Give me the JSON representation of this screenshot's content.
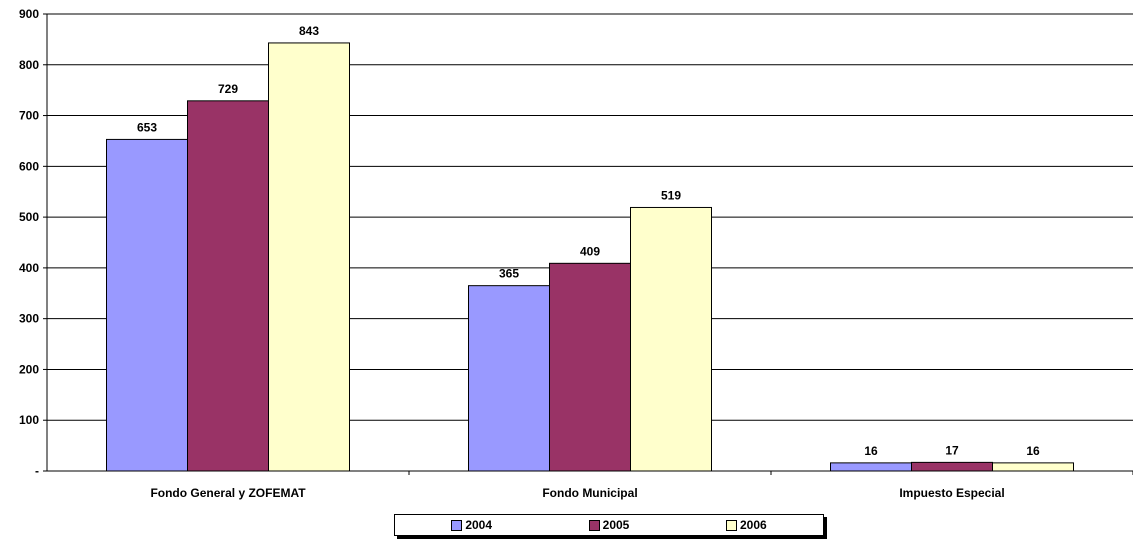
{
  "chart_data": {
    "type": "bar",
    "categories": [
      "Fondo General y ZOFEMAT",
      "Fondo Municipal",
      "Impuesto Especial"
    ],
    "series": [
      {
        "name": "2004",
        "values": [
          653,
          365,
          16
        ],
        "color": "#9999FF"
      },
      {
        "name": "2005",
        "values": [
          729,
          409,
          17
        ],
        "color": "#993366"
      },
      {
        "name": "2006",
        "values": [
          843,
          519,
          16
        ],
        "color": "#FFFFCC"
      }
    ],
    "ylim": [
      0,
      900
    ],
    "yticks": [
      0,
      100,
      200,
      300,
      400,
      500,
      600,
      700,
      800,
      900
    ],
    "ytick_labels": [
      "-",
      "100",
      "200",
      "300",
      "400",
      "500",
      "600",
      "700",
      "800",
      "900"
    ],
    "grid": true,
    "legend_position": "bottom",
    "title": "",
    "xlabel": "",
    "ylabel": ""
  }
}
